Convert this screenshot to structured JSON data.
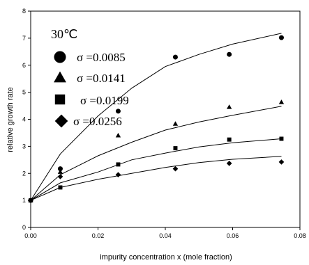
{
  "chart_data": {
    "type": "scatter",
    "condition_label": "30℃",
    "xlabel": "impurity concentration x (mole fraction)",
    "ylabel": "relative growth rate",
    "xlim": [
      0,
      0.08
    ],
    "ylim": [
      0,
      8
    ],
    "x_ticks": [
      "0.00",
      "0.02",
      "0.04",
      "0.06",
      "0.08"
    ],
    "y_ticks": [
      "0",
      "1",
      "2",
      "3",
      "4",
      "5",
      "6",
      "7",
      "8"
    ],
    "grid": false,
    "legend_position": "top-left",
    "series": [
      {
        "name": "σ =0.0085",
        "marker": "circle",
        "points": [
          [
            0,
            1.0
          ],
          [
            0.0088,
            2.17
          ],
          [
            0.026,
            4.3
          ],
          [
            0.043,
            6.3
          ],
          [
            0.059,
            6.4
          ],
          [
            0.0745,
            7.02
          ]
        ],
        "fit": [
          [
            0,
            1.0
          ],
          [
            0.0088,
            2.72
          ],
          [
            0.02,
            4.12
          ],
          [
            0.03,
            5.15
          ],
          [
            0.04,
            5.95
          ],
          [
            0.05,
            6.4
          ],
          [
            0.06,
            6.78
          ],
          [
            0.0745,
            7.18
          ]
        ]
      },
      {
        "name": "σ =0.0141",
        "marker": "triangle",
        "points": [
          [
            0,
            1.0
          ],
          [
            0.0088,
            2.05
          ],
          [
            0.026,
            3.4
          ],
          [
            0.043,
            3.83
          ],
          [
            0.059,
            4.45
          ],
          [
            0.0745,
            4.63
          ]
        ],
        "fit": [
          [
            0,
            1.0
          ],
          [
            0.0088,
            1.95
          ],
          [
            0.02,
            2.65
          ],
          [
            0.03,
            3.15
          ],
          [
            0.04,
            3.6
          ],
          [
            0.05,
            3.9
          ],
          [
            0.06,
            4.15
          ],
          [
            0.0745,
            4.48
          ]
        ]
      },
      {
        "name": "σ =0.0199",
        "marker": "square",
        "points": [
          [
            0,
            1.0
          ],
          [
            0.0088,
            1.48
          ],
          [
            0.026,
            2.33
          ],
          [
            0.043,
            2.93
          ],
          [
            0.059,
            3.25
          ],
          [
            0.0745,
            3.28
          ]
        ],
        "fit": [
          [
            0,
            1.0
          ],
          [
            0.0088,
            1.65
          ],
          [
            0.02,
            2.05
          ],
          [
            0.03,
            2.5
          ],
          [
            0.04,
            2.75
          ],
          [
            0.05,
            2.98
          ],
          [
            0.06,
            3.13
          ],
          [
            0.0745,
            3.28
          ]
        ]
      },
      {
        "name": "σ =0.0256",
        "marker": "diamond",
        "points": [
          [
            0,
            1.0
          ],
          [
            0.0088,
            1.88
          ],
          [
            0.026,
            1.95
          ],
          [
            0.043,
            2.17
          ],
          [
            0.059,
            2.37
          ],
          [
            0.0745,
            2.42
          ]
        ],
        "fit": [
          [
            0,
            1.0
          ],
          [
            0.0088,
            1.48
          ],
          [
            0.02,
            1.78
          ],
          [
            0.03,
            2.0
          ],
          [
            0.04,
            2.22
          ],
          [
            0.05,
            2.4
          ],
          [
            0.06,
            2.52
          ],
          [
            0.0745,
            2.63
          ]
        ]
      }
    ]
  }
}
